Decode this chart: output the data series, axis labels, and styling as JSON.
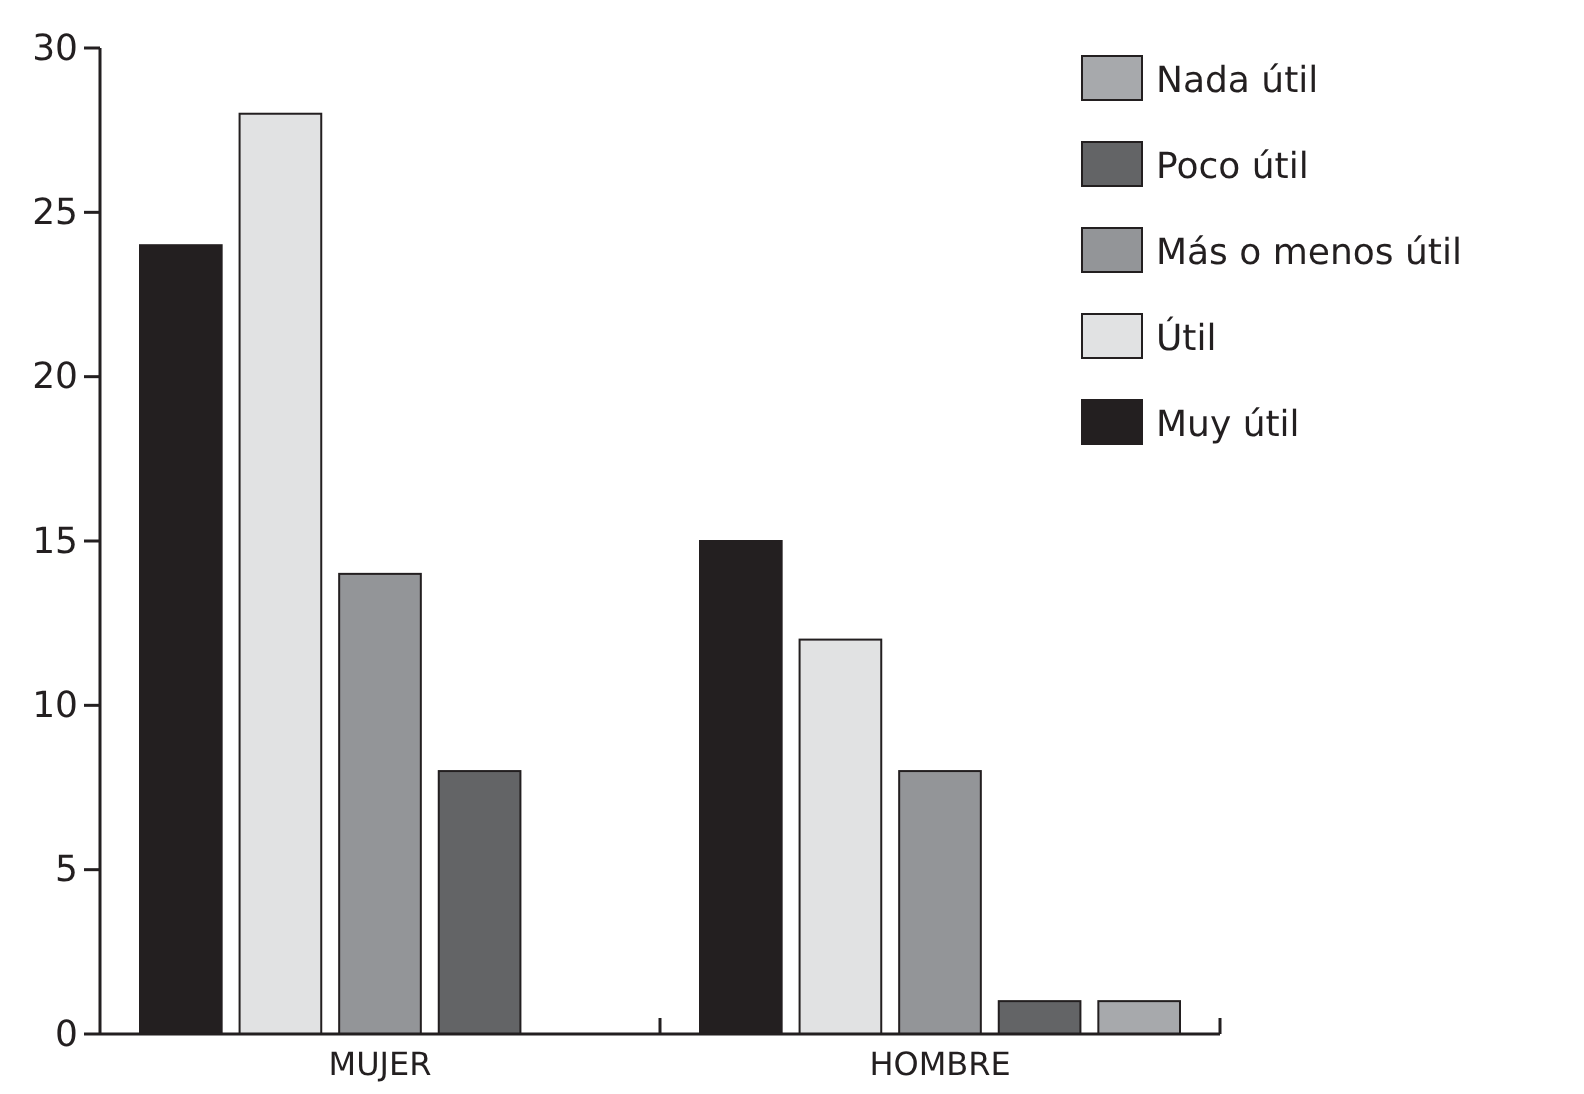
{
  "chart_data": {
    "type": "bar",
    "categories": [
      "MUJER",
      "HOMBRE"
    ],
    "series": [
      {
        "name": "Muy útil",
        "color": "#231f20",
        "values": [
          24,
          15
        ]
      },
      {
        "name": "Útil",
        "color": "#e1e2e3",
        "values": [
          28,
          12
        ]
      },
      {
        "name": "Más o menos útil",
        "color": "#939598",
        "values": [
          14,
          8
        ]
      },
      {
        "name": "Poco útil",
        "color": "#636466",
        "values": [
          8,
          1
        ]
      },
      {
        "name": "Nada útil",
        "color": "#a7a9ac",
        "values": [
          0,
          1
        ]
      }
    ],
    "ylim": [
      0,
      30
    ],
    "yticks": [
      0,
      5,
      10,
      15,
      20,
      25,
      30
    ],
    "grid": false,
    "legend": "top right"
  }
}
